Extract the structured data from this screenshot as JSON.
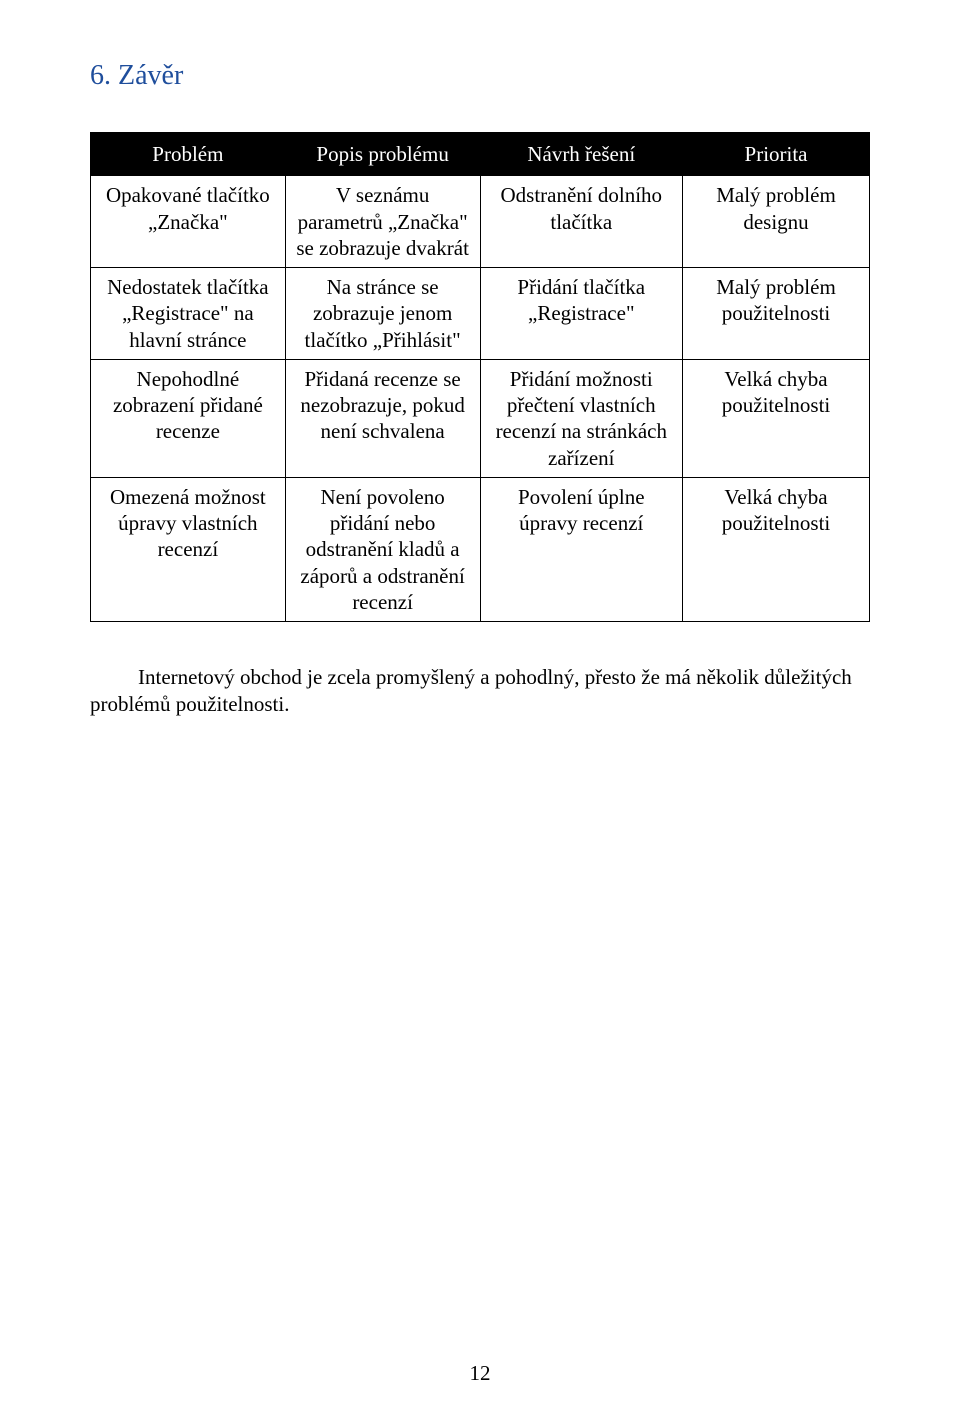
{
  "heading": "6. Závěr",
  "table": {
    "columns": [
      "Problém",
      "Popis problému",
      "Návrh řešení",
      "Priorita"
    ],
    "rows": [
      [
        "Opakované tlačítko „Značka\"",
        "V seznámu parametrů „Značka\" se zobrazuje dvakrát",
        "Odstranění dolního tlačítka",
        "Malý problém designu"
      ],
      [
        "Nedostatek tlačítka „Registrace\" na hlavní stránce",
        "Na stránce se zobrazuje jenom tlačítko „Přihlásit\"",
        "Přidání tlačítka „Registrace\"",
        "Malý problém použitelnosti"
      ],
      [
        "Nepohodlné zobrazení přidané recenze",
        "Přidaná recenze se nezobrazuje, pokud není schvalena",
        "Přidání možnosti přečtení vlastních recenzí na stránkách zařízení",
        "Velká chyba použitelnosti"
      ],
      [
        "Omezená možnost úpravy vlastních recenzí",
        "Není povoleno přidání nebo odstranění kladů a záporů a odstranění recenzí",
        "Povolení úplne úpravy recenzí",
        "Velká chyba použitelnosti"
      ]
    ]
  },
  "paragraph": "Internetový obchod je zcela promyšlený a pohodlný, přesto že má několik důležitých problémů použitelnosti.",
  "page_number": "12"
}
